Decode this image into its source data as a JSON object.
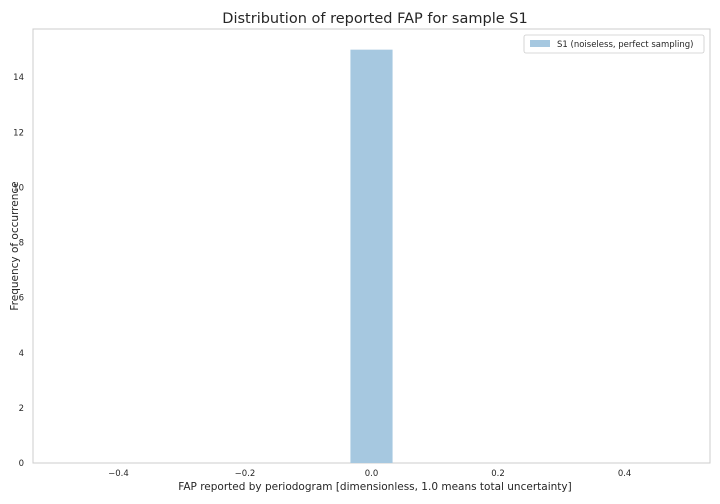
{
  "chart_data": {
    "type": "bar",
    "title": "Distribution of reported FAP for sample S1",
    "xlabel": "FAP reported by periodogram [dimensionless, 1.0 means total uncertainty]",
    "ylabel": "Frequency of occurrence",
    "xlim": [
      -0.535,
      0.535
    ],
    "ylim": [
      0,
      15.75
    ],
    "xticks": [
      -0.4,
      -0.2,
      0.0,
      0.2,
      0.4
    ],
    "xtick_labels": [
      "−0.4",
      "−0.2",
      "0.0",
      "0.2",
      "0.4"
    ],
    "yticks": [
      0,
      2,
      4,
      6,
      8,
      10,
      12,
      14
    ],
    "ytick_labels": [
      "0",
      "2",
      "4",
      "6",
      "8",
      "10",
      "12",
      "14"
    ],
    "grid": false,
    "legend_position": "top-right",
    "series": [
      {
        "name": "S1 (noiseless, perfect sampling)",
        "color": "#a6c8e0",
        "bins": [
          {
            "x0": -0.0333,
            "x1": 0.0333,
            "value": 15
          }
        ]
      }
    ]
  }
}
